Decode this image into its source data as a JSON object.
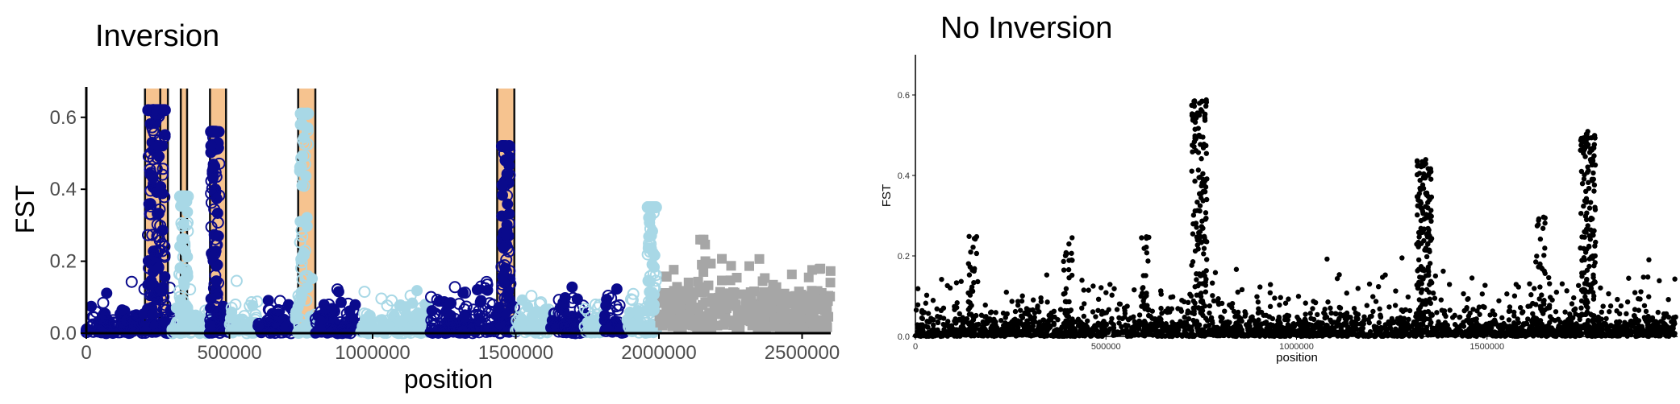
{
  "chart_data": [
    {
      "type": "scatter",
      "title": "Inversion",
      "xlabel": "position",
      "ylabel": "FST",
      "xlim": [
        0,
        2600000
      ],
      "ylim": [
        0,
        0.68
      ],
      "x_ticks": [
        0,
        500000,
        1000000,
        1500000,
        2000000,
        2500000
      ],
      "x_tick_labels": [
        "0",
        "500000",
        "1000000",
        "1500000",
        "2000000",
        "2500000"
      ],
      "y_ticks": [
        0.0,
        0.2,
        0.4,
        0.6
      ],
      "y_tick_labels": [
        "0.0",
        "0.2",
        "0.4",
        "0.6"
      ],
      "grid": false,
      "legend": "none",
      "colors": {
        "dark": "#0a0a8c",
        "light": "#a8d8e6",
        "grey": "#a6a6a6",
        "band": "#f6c38f"
      },
      "inversion_regions": [
        {
          "start": 205000,
          "end": 285000
        },
        {
          "start": 330000,
          "end": 352000
        },
        {
          "start": 432000,
          "end": 488000
        },
        {
          "start": 740000,
          "end": 800000
        },
        {
          "start": 1435000,
          "end": 1495000
        }
      ],
      "chromosomes": [
        {
          "start": 0,
          "end": 200000,
          "style": "dark",
          "base": 0.05
        },
        {
          "start": 200000,
          "end": 300000,
          "style": "dark",
          "base": 0.07
        },
        {
          "start": 300000,
          "end": 430000,
          "style": "light",
          "base": 0.05
        },
        {
          "start": 430000,
          "end": 500000,
          "style": "dark",
          "base": 0.06
        },
        {
          "start": 500000,
          "end": 600000,
          "style": "light",
          "base": 0.05
        },
        {
          "start": 600000,
          "end": 730000,
          "style": "dark",
          "base": 0.05
        },
        {
          "start": 730000,
          "end": 800000,
          "style": "light",
          "base": 0.07
        },
        {
          "start": 800000,
          "end": 960000,
          "style": "dark",
          "base": 0.05
        },
        {
          "start": 960000,
          "end": 1200000,
          "style": "light",
          "base": 0.05
        },
        {
          "start": 1200000,
          "end": 1360000,
          "style": "dark",
          "base": 0.05
        },
        {
          "start": 1360000,
          "end": 1500000,
          "style": "dark",
          "base": 0.07
        },
        {
          "start": 1500000,
          "end": 1620000,
          "style": "light",
          "base": 0.05
        },
        {
          "start": 1620000,
          "end": 1740000,
          "style": "dark",
          "base": 0.05
        },
        {
          "start": 1740000,
          "end": 1810000,
          "style": "light",
          "base": 0.05
        },
        {
          "start": 1810000,
          "end": 1890000,
          "style": "dark",
          "base": 0.06
        },
        {
          "start": 1890000,
          "end": 1995000,
          "style": "light",
          "base": 0.06
        },
        {
          "start": 2000000,
          "end": 2600000,
          "style": "grey",
          "base": 0.09
        }
      ],
      "peaks": [
        {
          "x": 230000,
          "fst": 0.62,
          "style": "dark"
        },
        {
          "x": 260000,
          "fst": 0.62,
          "style": "dark"
        },
        {
          "x": 340000,
          "fst": 0.38,
          "style": "light"
        },
        {
          "x": 450000,
          "fst": 0.56,
          "style": "dark"
        },
        {
          "x": 760000,
          "fst": 0.61,
          "style": "light"
        },
        {
          "x": 1465000,
          "fst": 0.52,
          "style": "dark"
        },
        {
          "x": 1975000,
          "fst": 0.35,
          "style": "light"
        },
        {
          "x": 2150000,
          "fst": 0.26,
          "style": "grey"
        }
      ]
    },
    {
      "type": "scatter",
      "title": "No Inversion",
      "xlabel": "position",
      "ylabel": "FST",
      "xlim": [
        0,
        2000000
      ],
      "ylim": [
        0,
        0.7
      ],
      "x_ticks": [
        0,
        500000,
        1000000,
        1500000
      ],
      "x_tick_labels": [
        "0",
        "500000",
        "1000000",
        "1500000"
      ],
      "y_ticks": [
        0.0,
        0.2,
        0.4,
        0.6
      ],
      "y_tick_labels": [
        "0.0",
        "0.2",
        "0.4",
        "0.6"
      ],
      "grid": false,
      "legend": "none",
      "colors": {
        "points": "#000000"
      },
      "peaks": [
        {
          "x": 745000,
          "fst": 0.59
        },
        {
          "x": 1335000,
          "fst": 0.44
        },
        {
          "x": 1765000,
          "fst": 0.51
        },
        {
          "x": 1640000,
          "fst": 0.3
        },
        {
          "x": 600000,
          "fst": 0.26
        },
        {
          "x": 400000,
          "fst": 0.25
        },
        {
          "x": 150000,
          "fst": 0.25
        }
      ]
    }
  ]
}
